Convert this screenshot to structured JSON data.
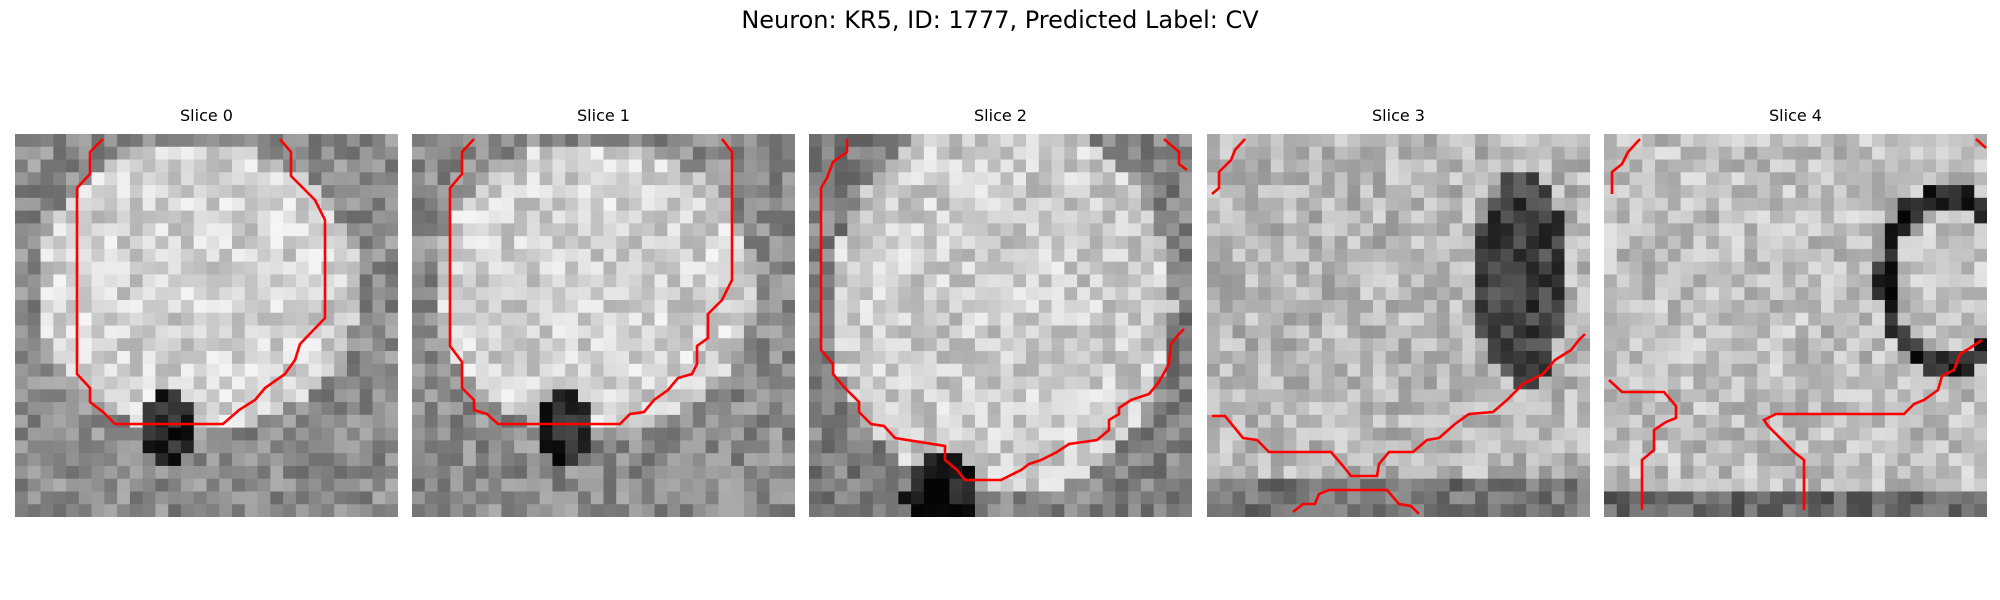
{
  "figure": {
    "title": "Neuron: KR5, ID: 1777, Predicted Label: CV"
  },
  "colors": {
    "contour": "#ff0000"
  },
  "panels": [
    {
      "title": "Slice 0",
      "seed": 11,
      "pattern": "blob-bottom-dark"
    },
    {
      "title": "Slice 1",
      "seed": 23,
      "pattern": "blob-bottom-dark"
    },
    {
      "title": "Slice 2",
      "seed": 37,
      "pattern": "blob-large"
    },
    {
      "title": "Slice 3",
      "seed": 51,
      "pattern": "dark-right"
    },
    {
      "title": "Slice 4",
      "seed": 73,
      "pattern": "ring-right"
    }
  ]
}
